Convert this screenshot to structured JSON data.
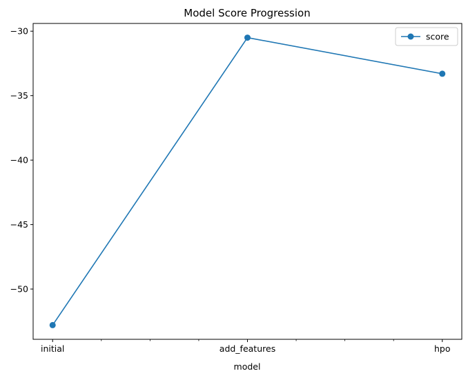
{
  "chart_data": {
    "type": "line",
    "title": "Model Score Progression",
    "xlabel": "model",
    "ylabel": "",
    "categories": [
      "initial",
      "add_features",
      "hpo"
    ],
    "series": [
      {
        "name": "score",
        "values": [
          -52.8,
          -30.5,
          -33.3
        ],
        "color": "#1f77b4",
        "marker": "circle"
      }
    ],
    "ylim": [
      -53.9,
      -29.4
    ],
    "yticks": [
      -30,
      -35,
      -40,
      -45,
      -50
    ],
    "ytick_labels": [
      "−30",
      "−35",
      "−40",
      "−45",
      "−50"
    ],
    "minor_xticks": [
      0.25,
      0.5,
      0.75,
      1.25,
      1.5,
      1.75
    ],
    "grid": false,
    "legend": "top-right"
  }
}
